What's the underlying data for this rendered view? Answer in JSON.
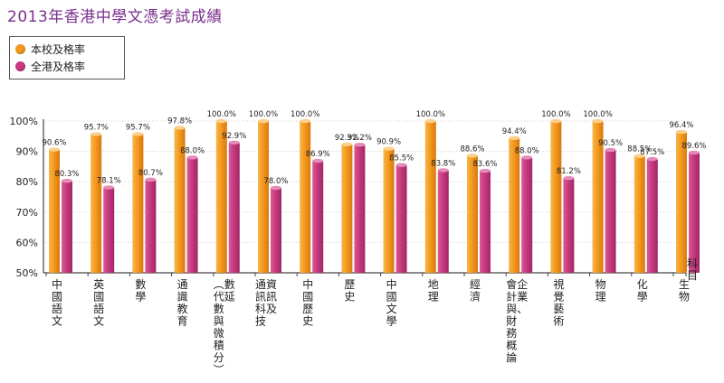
{
  "title": "2013年香港中學文憑考試成績",
  "legend": [
    {
      "label": "本校及格率",
      "color": "#f39a1e"
    },
    {
      "label": "全港及格率",
      "color": "#c8397f"
    }
  ],
  "chart_data": {
    "type": "bar",
    "title": "2013年香港中學文憑考試成績",
    "xlabel": "科目",
    "ylabel": "",
    "ylim": [
      50,
      100
    ],
    "yticks": [
      "50%",
      "60%",
      "70%",
      "80%",
      "90%",
      "100%"
    ],
    "categories": [
      [
        "中國語文"
      ],
      [
        "英國語文"
      ],
      [
        "數學"
      ],
      [
        "通識教育"
      ],
      [
        "數延",
        "(代數與微積分)"
      ],
      [
        "資訊及",
        "通訊科技"
      ],
      [
        "中國歷史"
      ],
      [
        "歷史"
      ],
      [
        "中國文學"
      ],
      [
        "地理"
      ],
      [
        "經濟"
      ],
      [
        "企業、",
        "會計與財務概論"
      ],
      [
        "視覺藝術"
      ],
      [
        "物理"
      ],
      [
        "化學"
      ],
      [
        "生物"
      ]
    ],
    "series": [
      {
        "name": "本校及格率",
        "color": "#f39a1e",
        "values": [
          90.6,
          95.7,
          95.7,
          97.8,
          100.0,
          100.0,
          100.0,
          92.3,
          90.9,
          100.0,
          88.6,
          94.4,
          100.0,
          100.0,
          88.5,
          96.4
        ],
        "labels": [
          "90.6%",
          "95.7%",
          "95.7%",
          "97.8%",
          "100.0%",
          "100.0%",
          "100.0%",
          "92.3%",
          "90.9%",
          "100.0%",
          "88.6%",
          "94.4%",
          "100.0%",
          "100.0%",
          "88.5%",
          "96.4%"
        ]
      },
      {
        "name": "全港及格率",
        "color": "#c8397f",
        "values": [
          80.3,
          78.1,
          80.7,
          88.0,
          92.9,
          78.0,
          86.9,
          92.2,
          85.5,
          83.8,
          83.6,
          88.0,
          81.2,
          90.5,
          87.5,
          89.6
        ],
        "labels": [
          "80.3%",
          "78.1%",
          "80.7%",
          "88.0%",
          "92.9%",
          "78.0%",
          "86.9%",
          "92.2%",
          "85.5%",
          "83.8%",
          "83.6%",
          "88.0%",
          "81.2%",
          "90.5%",
          "87.5%",
          "89.6%"
        ]
      }
    ]
  }
}
